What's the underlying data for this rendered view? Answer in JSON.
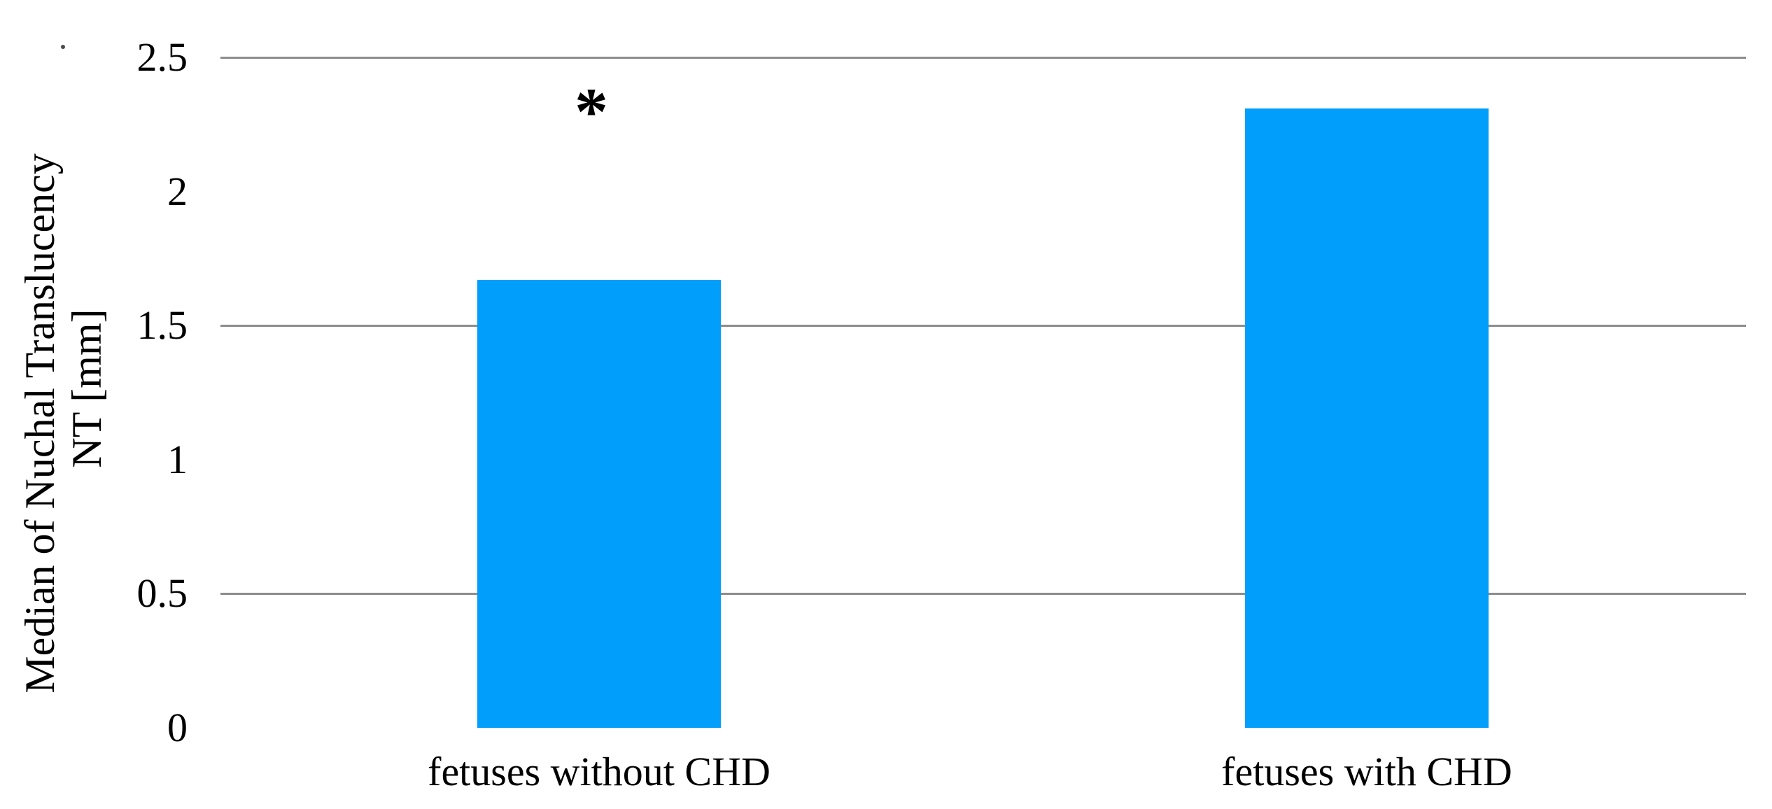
{
  "figure": {
    "background_color": "#ffffff",
    "stray_dot_top_left": true
  },
  "chart_data": {
    "type": "bar",
    "title": "",
    "categories": [
      "fetuses without CHD",
      "fetuses with CHD"
    ],
    "values": [
      1.67,
      2.31
    ],
    "ylabel_line1": "Median of Nuchal Translucency",
    "ylabel_line2": "NT [mm]",
    "xlabel": "",
    "yticks": [
      2.5,
      2,
      1.5,
      1,
      0.5,
      0
    ],
    "ytick_labels": [
      "2.5",
      "2",
      "1.5",
      "1",
      "0.5",
      "0"
    ],
    "gridline_values": [
      2.5,
      1.5,
      0.5
    ],
    "ylim": [
      0,
      2.5
    ],
    "grid": "horizontal-only",
    "legend": "none",
    "bar_color": "#019FFB",
    "gridline_color": "#8c8c8c",
    "text_color": "#000000",
    "annotation": {
      "text": "*",
      "meaning": "significance-marker",
      "bar_index": 0
    }
  }
}
